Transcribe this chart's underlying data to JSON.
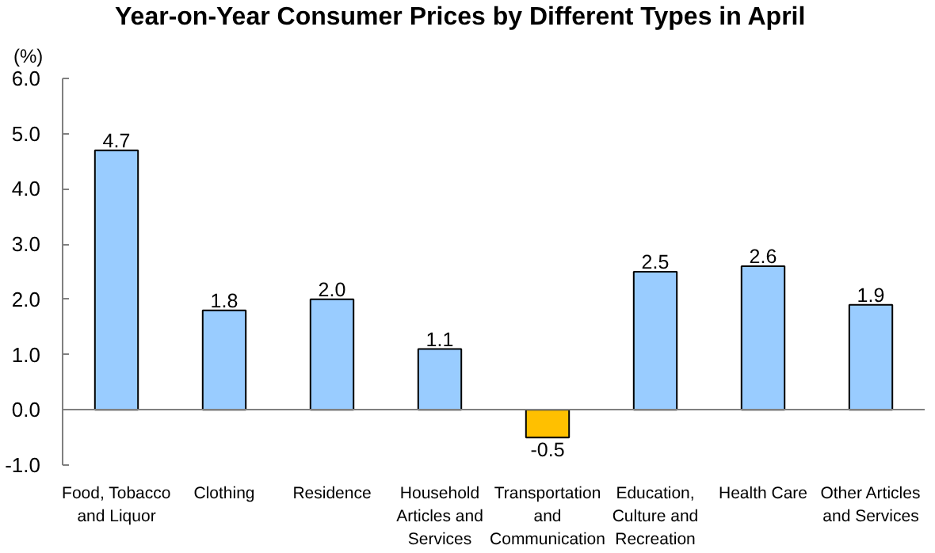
{
  "chart_data": {
    "type": "bar",
    "title": "Year-on-Year Consumer Prices by Different Types in April",
    "ylabel": "(%)",
    "categories": [
      "Food, Tobacco and Liquor",
      "Clothing",
      "Residence",
      "Household Articles and Services",
      "Transportation and Communication",
      "Education, Culture and Recreation",
      "Health Care",
      "Other Articles and Services"
    ],
    "values": [
      4.7,
      1.8,
      2.0,
      1.1,
      -0.5,
      2.5,
      2.6,
      1.9
    ],
    "value_labels": [
      "4.7",
      "1.8",
      "2.0",
      "1.1",
      "-0.5",
      "2.5",
      "2.6",
      "1.9"
    ],
    "colors": [
      "#99ccff",
      "#99ccff",
      "#99ccff",
      "#99ccff",
      "#ffc000",
      "#99ccff",
      "#99ccff",
      "#99ccff"
    ],
    "ylim": [
      -1.0,
      6.0
    ],
    "yticks": [
      {
        "value": -1,
        "label": "-1.0"
      },
      {
        "value": 0,
        "label": "0.0"
      },
      {
        "value": 1,
        "label": "1.0"
      },
      {
        "value": 2,
        "label": "2.0"
      },
      {
        "value": 3,
        "label": "3.0"
      },
      {
        "value": 4,
        "label": "4.0"
      },
      {
        "value": 5,
        "label": "5.0"
      },
      {
        "value": 6,
        "label": "6.0"
      }
    ]
  }
}
